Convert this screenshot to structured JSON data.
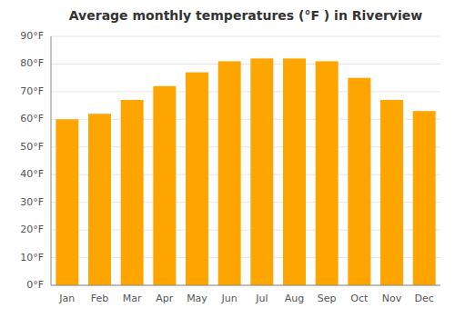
{
  "chart_data": {
    "type": "bar",
    "title": "Average monthly temperatures (°F ) in Riverview",
    "categories": [
      "Jan",
      "Feb",
      "Mar",
      "Apr",
      "May",
      "Jun",
      "Jul",
      "Aug",
      "Sep",
      "Oct",
      "Nov",
      "Dec"
    ],
    "values": [
      60,
      62,
      67,
      72,
      77,
      81,
      82,
      82,
      81,
      75,
      67,
      63
    ],
    "color": "#FFA500",
    "ylim": [
      0,
      90
    ],
    "yticks": [
      {
        "value": 0,
        "label": "0°F"
      },
      {
        "value": 10,
        "label": "10°F"
      },
      {
        "value": 20,
        "label": "20°F"
      },
      {
        "value": 30,
        "label": "30°F"
      },
      {
        "value": 40,
        "label": "40°F"
      },
      {
        "value": 50,
        "label": "50°F"
      },
      {
        "value": 60,
        "label": "60°F"
      },
      {
        "value": 70,
        "label": "70°F"
      },
      {
        "value": 80,
        "label": "80°F"
      },
      {
        "value": 90,
        "label": "90°F"
      }
    ],
    "grid": true
  }
}
